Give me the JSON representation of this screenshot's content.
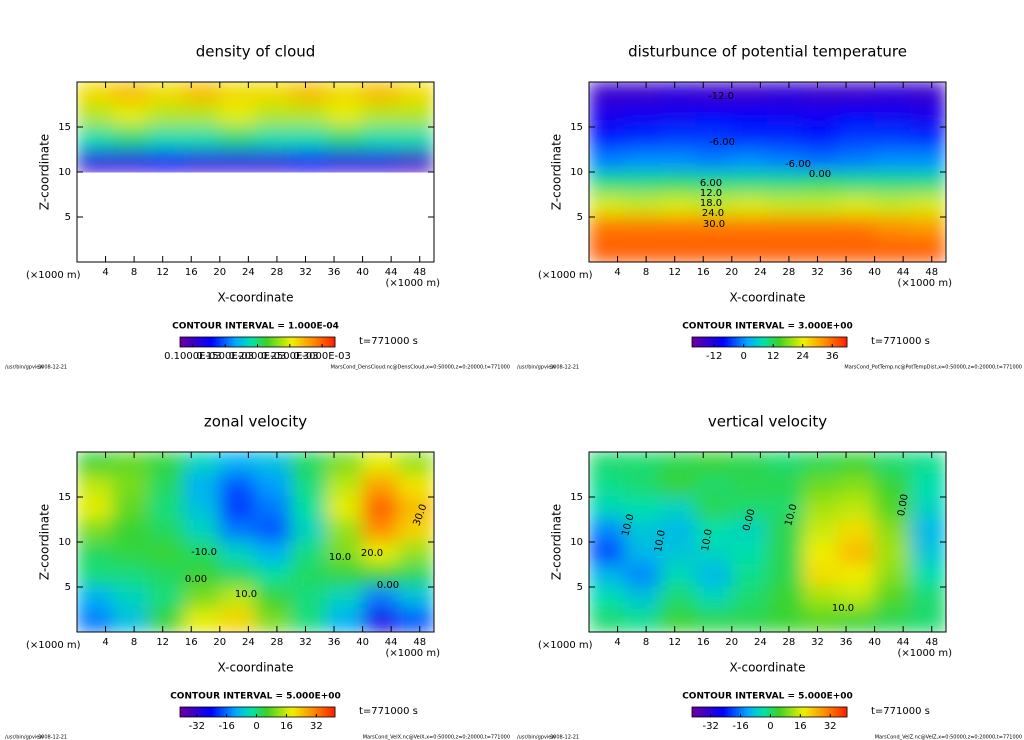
{
  "chart_data": [
    {
      "type": "heatmap",
      "title": "density of cloud",
      "xlabel": "X-coordinate",
      "ylabel": "Z-coordinate",
      "x_unit": "(×1000 m)",
      "xlim": [
        0,
        50
      ],
      "ylim": [
        0,
        20
      ],
      "xticks": [
        4,
        8,
        12,
        16,
        20,
        24,
        28,
        32,
        36,
        40,
        44,
        48
      ],
      "yticks": [
        5,
        10,
        15
      ],
      "z": [
        [
          0.00026,
          0.00027,
          0.00026,
          0.00027,
          0.00026,
          0.00026,
          0.00027,
          0.00026,
          0.00027,
          0.00026
        ],
        [
          0.00024,
          0.00025,
          0.00024,
          0.00024,
          0.00025,
          0.00024,
          0.00024,
          0.00025,
          0.00024,
          0.00024
        ],
        [
          0.00019,
          0.0002,
          0.00019,
          0.00019,
          0.0002,
          0.00019,
          0.00019,
          0.0002,
          0.00019,
          0.00019
        ],
        [
          0.00011,
          0.00011,
          0.00012,
          0.00011,
          0.00011,
          0.00011,
          0.00012,
          0.00011,
          0.00011,
          0.0001
        ],
        [
          null,
          null,
          null,
          null,
          null,
          null,
          null,
          null,
          null,
          null
        ],
        [
          null,
          null,
          null,
          null,
          null,
          null,
          null,
          null,
          null,
          null
        ],
        [
          null,
          null,
          null,
          null,
          null,
          null,
          null,
          null,
          null,
          null
        ],
        [
          null,
          null,
          null,
          null,
          null,
          null,
          null,
          null,
          null,
          null
        ]
      ],
      "contour_interval": "CONTOUR INTERVAL = 1.000E-04",
      "time": "t=771000 s",
      "colorbar": {
        "clim": [
          8e-05,
          0.00032
        ],
        "ticks": [
          {
            "value": 0.0001,
            "label": "0.1000E-03"
          },
          {
            "value": 0.00015,
            "label": "0.1500E-03"
          },
          {
            "value": 0.0002,
            "label": "0.2000E-03"
          },
          {
            "value": 0.00025,
            "label": "0.2500E-03"
          },
          {
            "value": 0.0003,
            "label": "0.3000E-03"
          }
        ]
      },
      "annotations": [],
      "footer_left": "/usr/bin/gpview",
      "footer_date": "2008-12-21",
      "footer_right": "MarsCond_DensCloud.nc@DensCloud,x=0:50000,z=0:20000,t=771000"
    },
    {
      "type": "heatmap",
      "title": "disturbunce of potential temperature",
      "xlabel": "X-coordinate",
      "ylabel": "Z-coordinate",
      "x_unit": "(×1000 m)",
      "xlim": [
        0,
        50
      ],
      "ylim": [
        0,
        20
      ],
      "xticks": [
        4,
        8,
        12,
        16,
        20,
        24,
        28,
        32,
        36,
        40,
        44,
        48
      ],
      "yticks": [
        5,
        10,
        15
      ],
      "z": [
        [
          -15,
          -15,
          -14,
          -15,
          -15,
          -14,
          -15,
          -15,
          -14,
          -15
        ],
        [
          -11,
          -10,
          -10,
          -9,
          -9,
          -10,
          -10,
          -9,
          -10,
          -11
        ],
        [
          -7,
          -6,
          -5,
          -5,
          -6,
          -6,
          -7,
          -5,
          -5,
          -6
        ],
        [
          -1,
          0,
          0,
          -1,
          0,
          -1,
          -2,
          -1,
          0,
          0
        ],
        [
          10,
          10,
          11,
          10,
          10,
          10,
          11,
          10,
          10,
          10
        ],
        [
          23,
          22,
          23,
          22,
          23,
          22,
          22,
          23,
          22,
          23
        ],
        [
          35,
          35,
          35,
          35,
          35,
          35,
          35,
          35,
          33,
          32
        ],
        [
          37,
          37,
          37,
          37,
          37,
          37,
          37,
          37,
          37,
          37
        ]
      ],
      "contour_interval": "CONTOUR INTERVAL = 3.000E+00",
      "time": "t=771000 s",
      "colorbar": {
        "clim": [
          -21,
          42
        ],
        "ticks": [
          -12,
          0,
          12,
          24,
          36
        ]
      },
      "annotations": [
        "-12.0",
        "-6.00",
        "-6.00",
        "0.00",
        "6.00",
        "12.0",
        "18.0",
        "24.0",
        "30.0"
      ],
      "footer_left": "/usr/bin/gpview",
      "footer_date": "2008-12-21",
      "footer_right": "MarsCond_PotTemp.nc@PotTempDist,x=0:50000,z=0:20000,t=771000"
    },
    {
      "type": "heatmap",
      "title": "zonal velocity",
      "xlabel": "X-coordinate",
      "ylabel": "Z-coordinate",
      "x_unit": "(×1000 m)",
      "xlim": [
        0,
        50
      ],
      "ylim": [
        0,
        20
      ],
      "xticks": [
        4,
        8,
        12,
        16,
        20,
        24,
        28,
        32,
        36,
        40,
        44,
        48
      ],
      "yticks": [
        5,
        10,
        15
      ],
      "z": [
        [
          5,
          8,
          4,
          -5,
          -10,
          -8,
          2,
          10,
          18,
          12
        ],
        [
          15,
          10,
          2,
          -10,
          -18,
          -12,
          0,
          15,
          28,
          20
        ],
        [
          18,
          8,
          0,
          -8,
          -20,
          -15,
          -2,
          18,
          35,
          25
        ],
        [
          10,
          5,
          2,
          -5,
          -15,
          -18,
          -5,
          12,
          30,
          22
        ],
        [
          2,
          4,
          5,
          2,
          -5,
          -10,
          0,
          10,
          18,
          12
        ],
        [
          0,
          0,
          2,
          5,
          2,
          -2,
          2,
          4,
          5,
          2
        ],
        [
          -10,
          -5,
          0,
          10,
          15,
          5,
          0,
          -5,
          -15,
          -8
        ],
        [
          -15,
          -8,
          5,
          18,
          22,
          10,
          0,
          -10,
          -28,
          -18
        ]
      ],
      "contour_interval": "CONTOUR INTERVAL = 5.000E+00",
      "time": "t=771000 s",
      "colorbar": {
        "clim": [
          -41,
          42
        ],
        "ticks": [
          -32,
          -16,
          0,
          16,
          32
        ]
      },
      "annotations": [
        "-10.0",
        "0.00",
        "10.0",
        "10.0",
        "20.0",
        "30.0",
        "0.00"
      ],
      "footer_left": "/usr/bin/gpview",
      "footer_date": "2008-12-21",
      "footer_right": "MarsCond_VelX.nc@VelX,x=0:50000,z=0:20000,t=771000"
    },
    {
      "type": "heatmap",
      "title": "vertical velocity",
      "xlabel": "X-coordinate",
      "ylabel": "Z-coordinate",
      "x_unit": "(×1000 m)",
      "xlim": [
        0,
        50
      ],
      "ylim": [
        0,
        20
      ],
      "xticks": [
        4,
        8,
        12,
        16,
        20,
        24,
        28,
        32,
        36,
        40,
        44,
        48
      ],
      "yticks": [
        5,
        10,
        15
      ],
      "z": [
        [
          0,
          0,
          2,
          4,
          2,
          0,
          2,
          4,
          0,
          -2
        ],
        [
          -2,
          0,
          4,
          0,
          2,
          2,
          8,
          10,
          4,
          -4
        ],
        [
          -5,
          -4,
          -6,
          2,
          0,
          0,
          12,
          14,
          6,
          -6
        ],
        [
          -15,
          -8,
          -10,
          -4,
          -6,
          2,
          15,
          20,
          10,
          -10
        ],
        [
          -20,
          -10,
          -8,
          -6,
          -4,
          2,
          18,
          24,
          12,
          -8
        ],
        [
          -10,
          -15,
          -5,
          -10,
          -2,
          2,
          20,
          18,
          10,
          -4
        ],
        [
          -4,
          -8,
          0,
          -5,
          0,
          4,
          12,
          14,
          6,
          0
        ],
        [
          0,
          -2,
          4,
          2,
          2,
          4,
          6,
          4,
          2,
          0
        ]
      ],
      "contour_interval": "CONTOUR INTERVAL = 5.000E+00",
      "time": "t=771000 s",
      "colorbar": {
        "clim": [
          -42,
          41
        ],
        "ticks": [
          -32,
          -16,
          0,
          16,
          32
        ]
      },
      "annotations": [
        "10.0",
        "10.0",
        "10.0",
        "0.00",
        "10.0",
        "0.00",
        "10.0"
      ],
      "footer_left": "/usr/bin/gpview",
      "footer_date": "2008-12-21",
      "footer_right": "MarsCond_VelZ.nc@VelZ,x=0:50000,z=0:20000,t=771000"
    }
  ]
}
